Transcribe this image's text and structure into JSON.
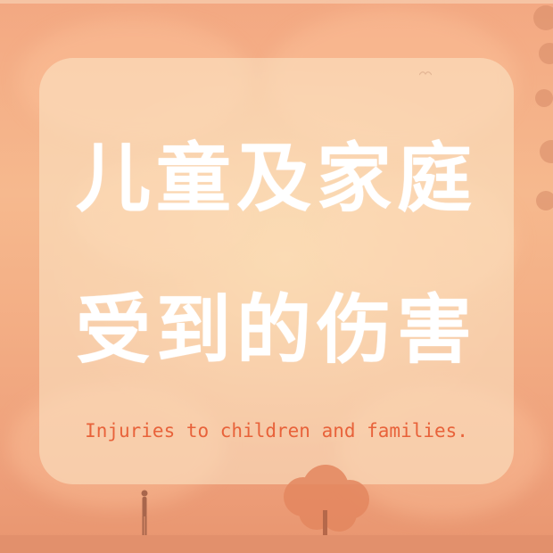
{
  "title": {
    "line1": "儿童及家庭",
    "line2": "受到的伤害"
  },
  "subtitle": "Injuries to children and families.",
  "colors": {
    "background": "#f3ad84",
    "card": "#fce8c8",
    "title_text": "#ffffff",
    "subtitle_text": "#e8623a"
  },
  "scene": {
    "elements": [
      "clouds",
      "tree-silhouette",
      "person-silhouette",
      "bird-silhouette",
      "horizon"
    ]
  }
}
